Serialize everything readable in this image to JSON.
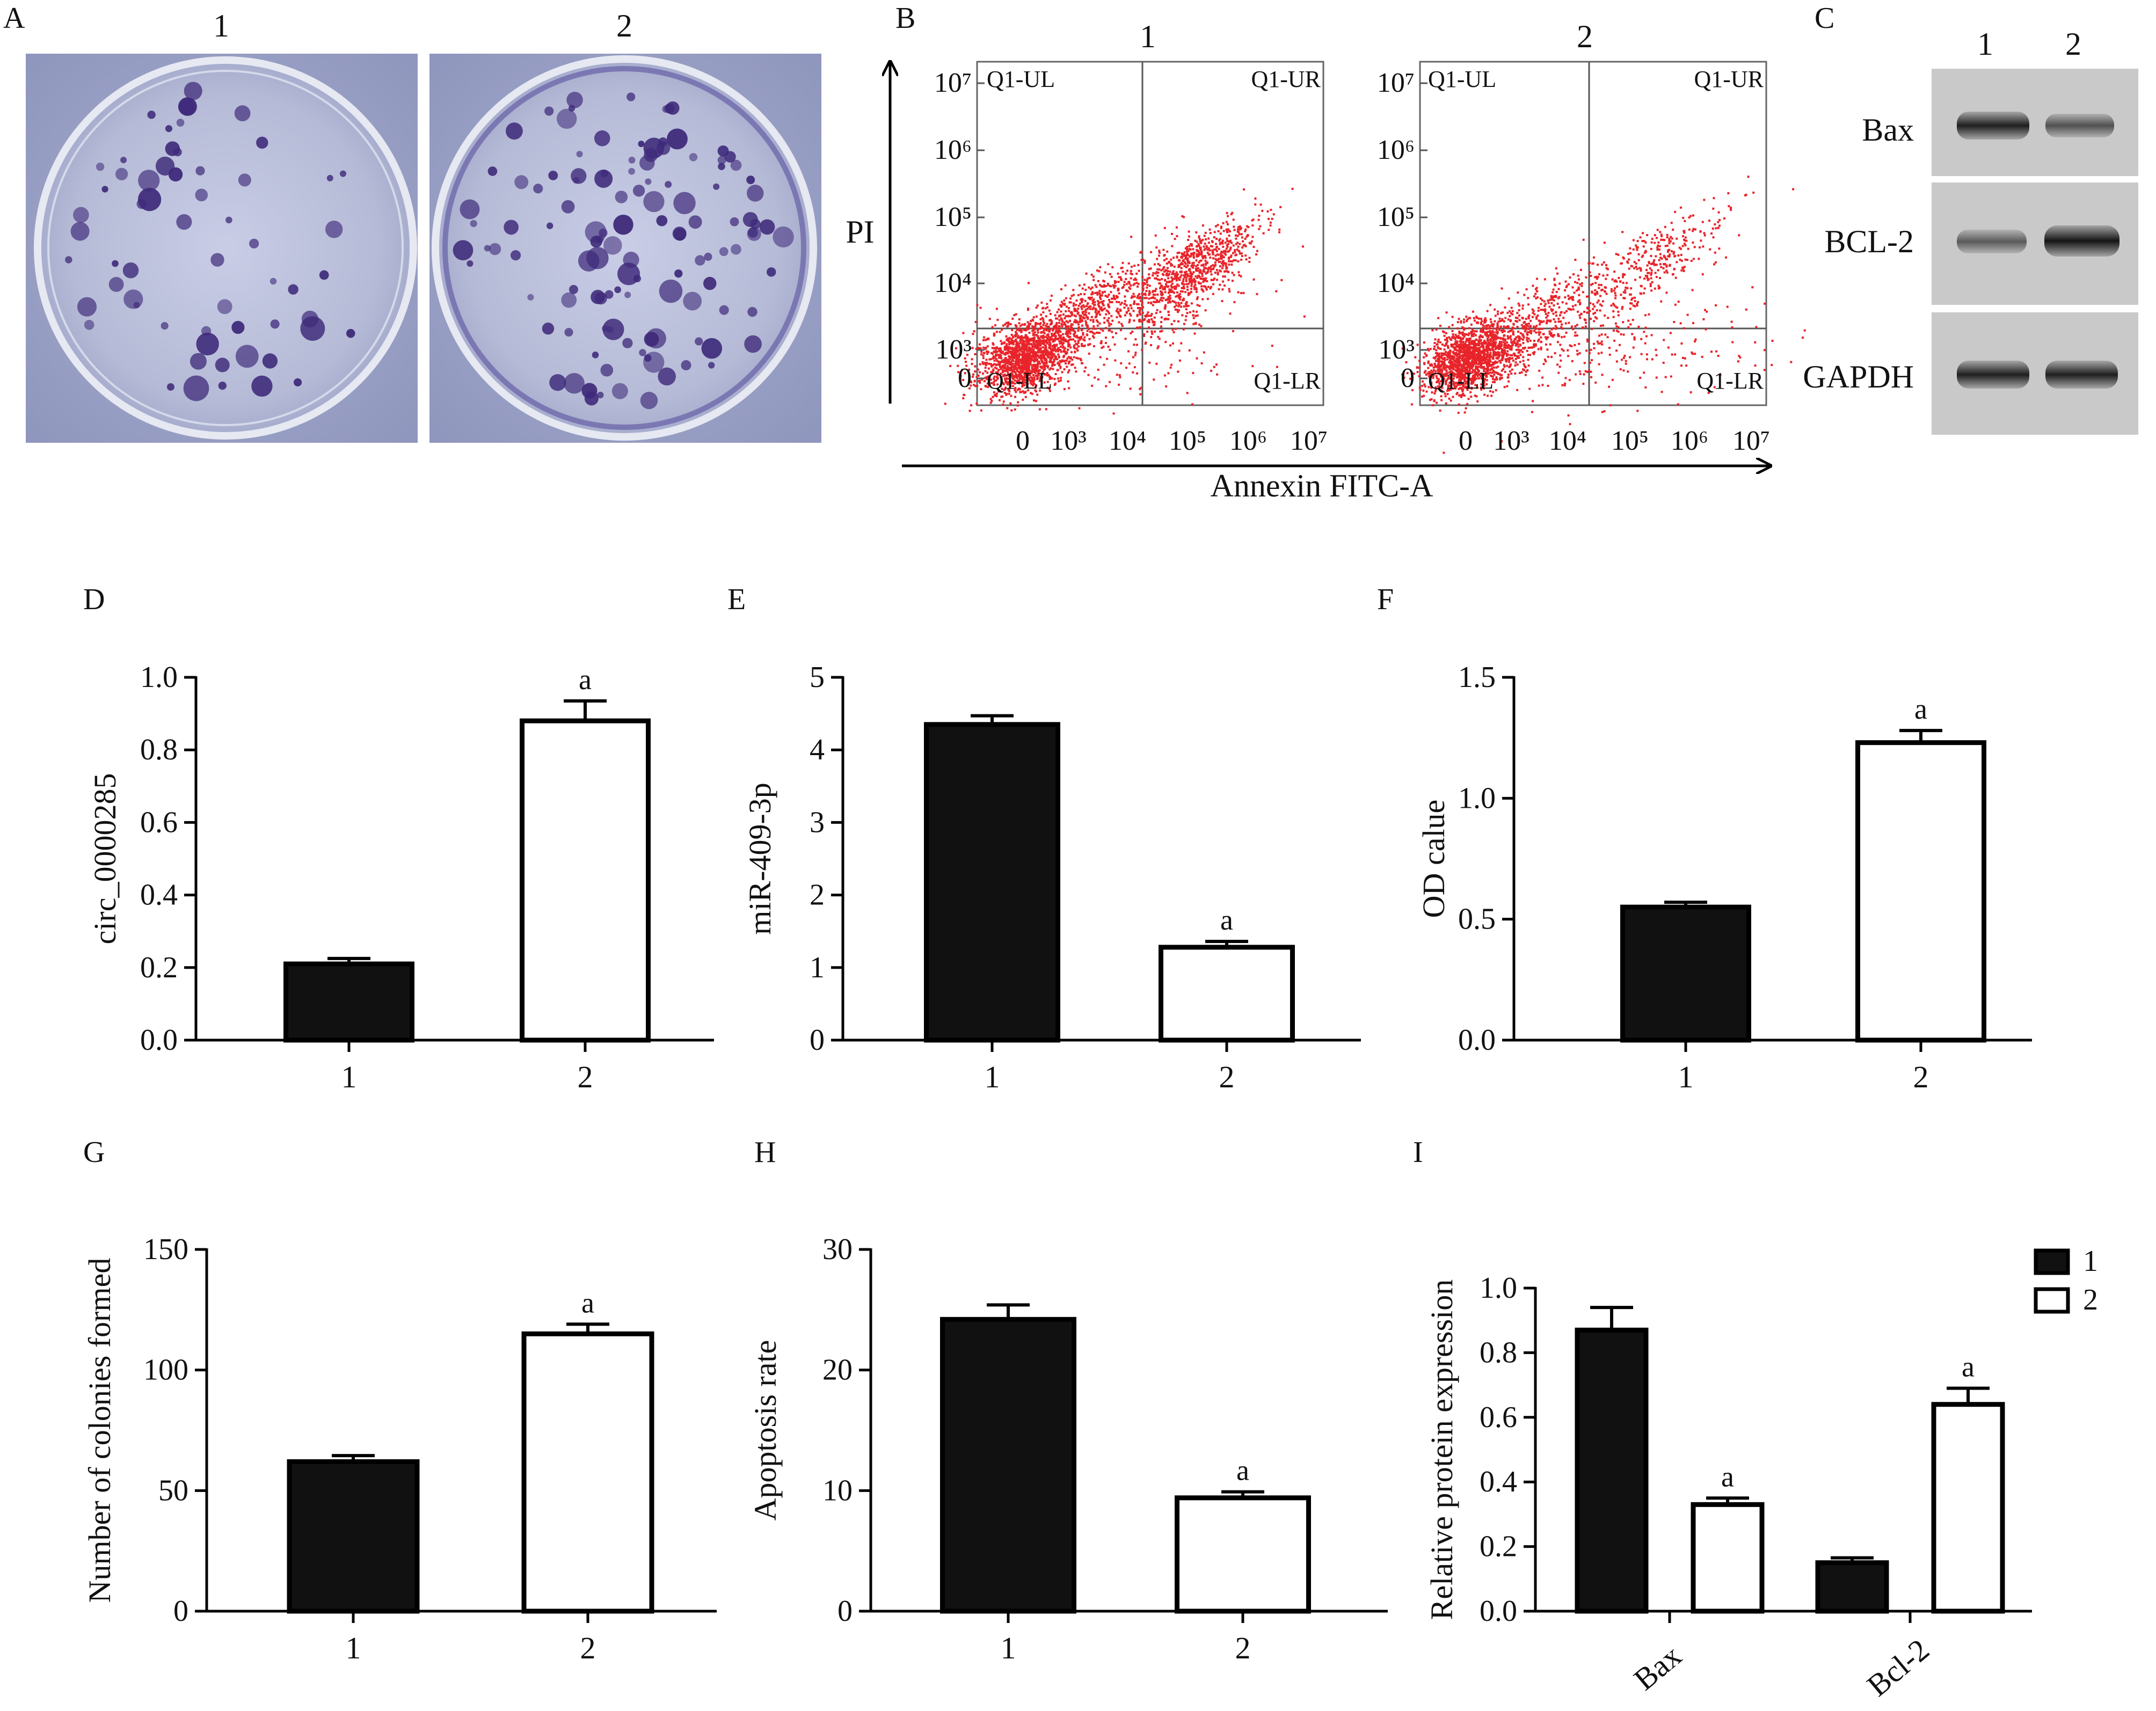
{
  "panels": {
    "A": {
      "letter": "A",
      "lanes": [
        "1",
        "2"
      ]
    },
    "B": {
      "letter": "B",
      "lanes": [
        "1",
        "2"
      ],
      "quadrants": [
        "Q1-UL",
        "Q1-UR",
        "Q1-LL",
        "Q1-LR"
      ],
      "ylabel": "PI",
      "xlabel": "Annexin FITC-A",
      "y_ticks": [
        "10⁷",
        "10⁶",
        "10⁵",
        "10⁴",
        "10³",
        "0"
      ],
      "x_ticks": [
        "0",
        "10³",
        "10⁴",
        "10⁵",
        "10⁶",
        "10⁷"
      ]
    },
    "C": {
      "letter": "C",
      "lanes": [
        "1",
        "2"
      ],
      "blots": [
        {
          "label": "Bax",
          "band_intensity": [
            0.85,
            0.6
          ]
        },
        {
          "label": "BCL-2",
          "band_intensity": [
            0.55,
            0.9
          ]
        },
        {
          "label": "GAPDH",
          "band_intensity": [
            0.85,
            0.85
          ]
        }
      ]
    }
  },
  "chart_data": [
    {
      "id": "D",
      "type": "bar",
      "letter": "D",
      "categories": [
        "1",
        "2"
      ],
      "values": [
        0.21,
        0.88
      ],
      "errors": [
        0.015,
        0.055
      ],
      "fills": [
        "#111111",
        "#ffffff"
      ],
      "sig": [
        "",
        "a"
      ],
      "ylabel": "circ_0000285",
      "xlabel": "",
      "ylim": [
        0,
        1.0
      ],
      "yticks": [
        "0.0",
        "0.2",
        "0.4",
        "0.6",
        "0.8",
        "1.0"
      ]
    },
    {
      "id": "E",
      "type": "bar",
      "letter": "E",
      "categories": [
        "1",
        "2"
      ],
      "values": [
        4.35,
        1.28
      ],
      "errors": [
        0.12,
        0.08
      ],
      "fills": [
        "#111111",
        "#ffffff"
      ],
      "sig": [
        "",
        "a"
      ],
      "ylabel": "miR-409-3p",
      "xlabel": "",
      "ylim": [
        0,
        5
      ],
      "yticks": [
        "0",
        "1",
        "2",
        "3",
        "4",
        "5"
      ]
    },
    {
      "id": "F",
      "type": "bar",
      "letter": "F",
      "categories": [
        "1",
        "2"
      ],
      "values": [
        0.55,
        1.23
      ],
      "errors": [
        0.02,
        0.05
      ],
      "fills": [
        "#111111",
        "#ffffff"
      ],
      "sig": [
        "",
        "a"
      ],
      "ylabel": "OD calue",
      "xlabel": "",
      "ylim": [
        0,
        1.5
      ],
      "yticks": [
        "0.0",
        "0.5",
        "1.0",
        "1.5"
      ]
    },
    {
      "id": "G",
      "type": "bar",
      "letter": "G",
      "categories": [
        "1",
        "2"
      ],
      "values": [
        62,
        115
      ],
      "errors": [
        2.5,
        4
      ],
      "fills": [
        "#111111",
        "#ffffff"
      ],
      "sig": [
        "",
        "a"
      ],
      "ylabel": "Number of colonies formed",
      "xlabel": "",
      "ylim": [
        0,
        150
      ],
      "yticks": [
        "0",
        "50",
        "100",
        "150"
      ]
    },
    {
      "id": "H",
      "type": "bar",
      "letter": "H",
      "categories": [
        "1",
        "2"
      ],
      "values": [
        24.2,
        9.4
      ],
      "errors": [
        1.2,
        0.5
      ],
      "fills": [
        "#111111",
        "#ffffff"
      ],
      "sig": [
        "",
        "a"
      ],
      "ylabel": "Apoptosis rate",
      "xlabel": "",
      "ylim": [
        0,
        30
      ],
      "yticks": [
        "0",
        "10",
        "20",
        "30"
      ]
    },
    {
      "id": "I",
      "type": "bar",
      "letter": "I",
      "categories": [
        "Bax",
        "Bcl-2"
      ],
      "series": [
        {
          "name": "1",
          "values": [
            0.87,
            0.15
          ],
          "errors": [
            0.07,
            0.015
          ],
          "fill": "#111111",
          "sig": [
            "",
            ""
          ]
        },
        {
          "name": "2",
          "values": [
            0.33,
            0.64
          ],
          "errors": [
            0.02,
            0.05
          ],
          "fill": "#ffffff",
          "sig": [
            "a",
            "a"
          ]
        }
      ],
      "ylabel": "Relative protein expression",
      "xlabel": "",
      "ylim": [
        0,
        1.0
      ],
      "yticks": [
        "0.0",
        "0.2",
        "0.4",
        "0.6",
        "0.8",
        "1.0"
      ],
      "legend": "top-right"
    }
  ]
}
